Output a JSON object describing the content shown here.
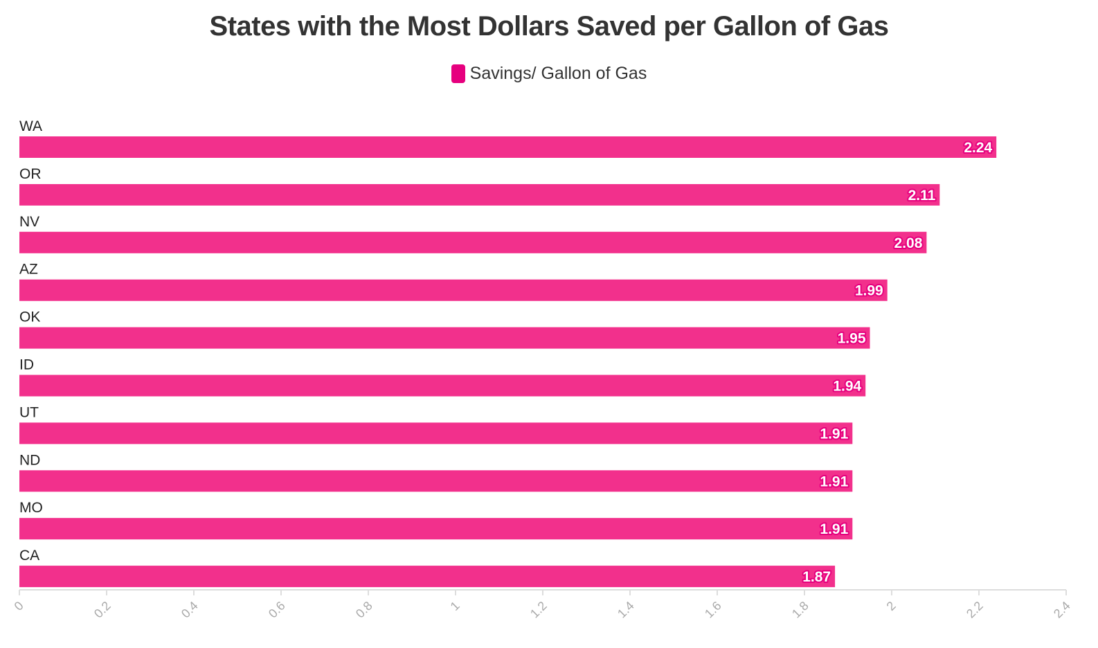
{
  "chart_data": {
    "type": "bar",
    "orientation": "horizontal",
    "title": "States with the Most Dollars Saved per Gallon of Gas",
    "categories": [
      "WA",
      "OR",
      "NV",
      "AZ",
      "OK",
      "ID",
      "UT",
      "ND",
      "MO",
      "CA"
    ],
    "series": [
      {
        "name": "Savings/ Gallon of Gas",
        "values": [
          2.24,
          2.11,
          2.08,
          1.99,
          1.95,
          1.94,
          1.91,
          1.91,
          1.91,
          1.87
        ],
        "color": "#f2308c"
      }
    ],
    "value_labels": [
      "2.24",
      "2.11",
      "2.08",
      "1.99",
      "1.95",
      "1.94",
      "1.91",
      "1.91",
      "1.91",
      "1.87"
    ],
    "xlim": [
      0,
      2.4
    ],
    "x_ticks": [
      0,
      0.2,
      0.4,
      0.6,
      0.8,
      1,
      1.2,
      1.4,
      1.6,
      1.8,
      2,
      2.2,
      2.4
    ],
    "x_tick_labels": [
      "0",
      "0.2",
      "0.4",
      "0.6",
      "0.8",
      "1",
      "1.2",
      "1.4",
      "1.6",
      "1.8",
      "2",
      "2.2",
      "2.4"
    ],
    "xlabel": "",
    "ylabel": "",
    "grid": false,
    "legend_position": "top-center"
  },
  "colors": {
    "bar": "#f2308c",
    "legend_swatch": "#e6007e",
    "label_outline": "#e6007e",
    "title": "#333333",
    "axis": "#dddddd",
    "tick_label": "#aaaaaa"
  }
}
